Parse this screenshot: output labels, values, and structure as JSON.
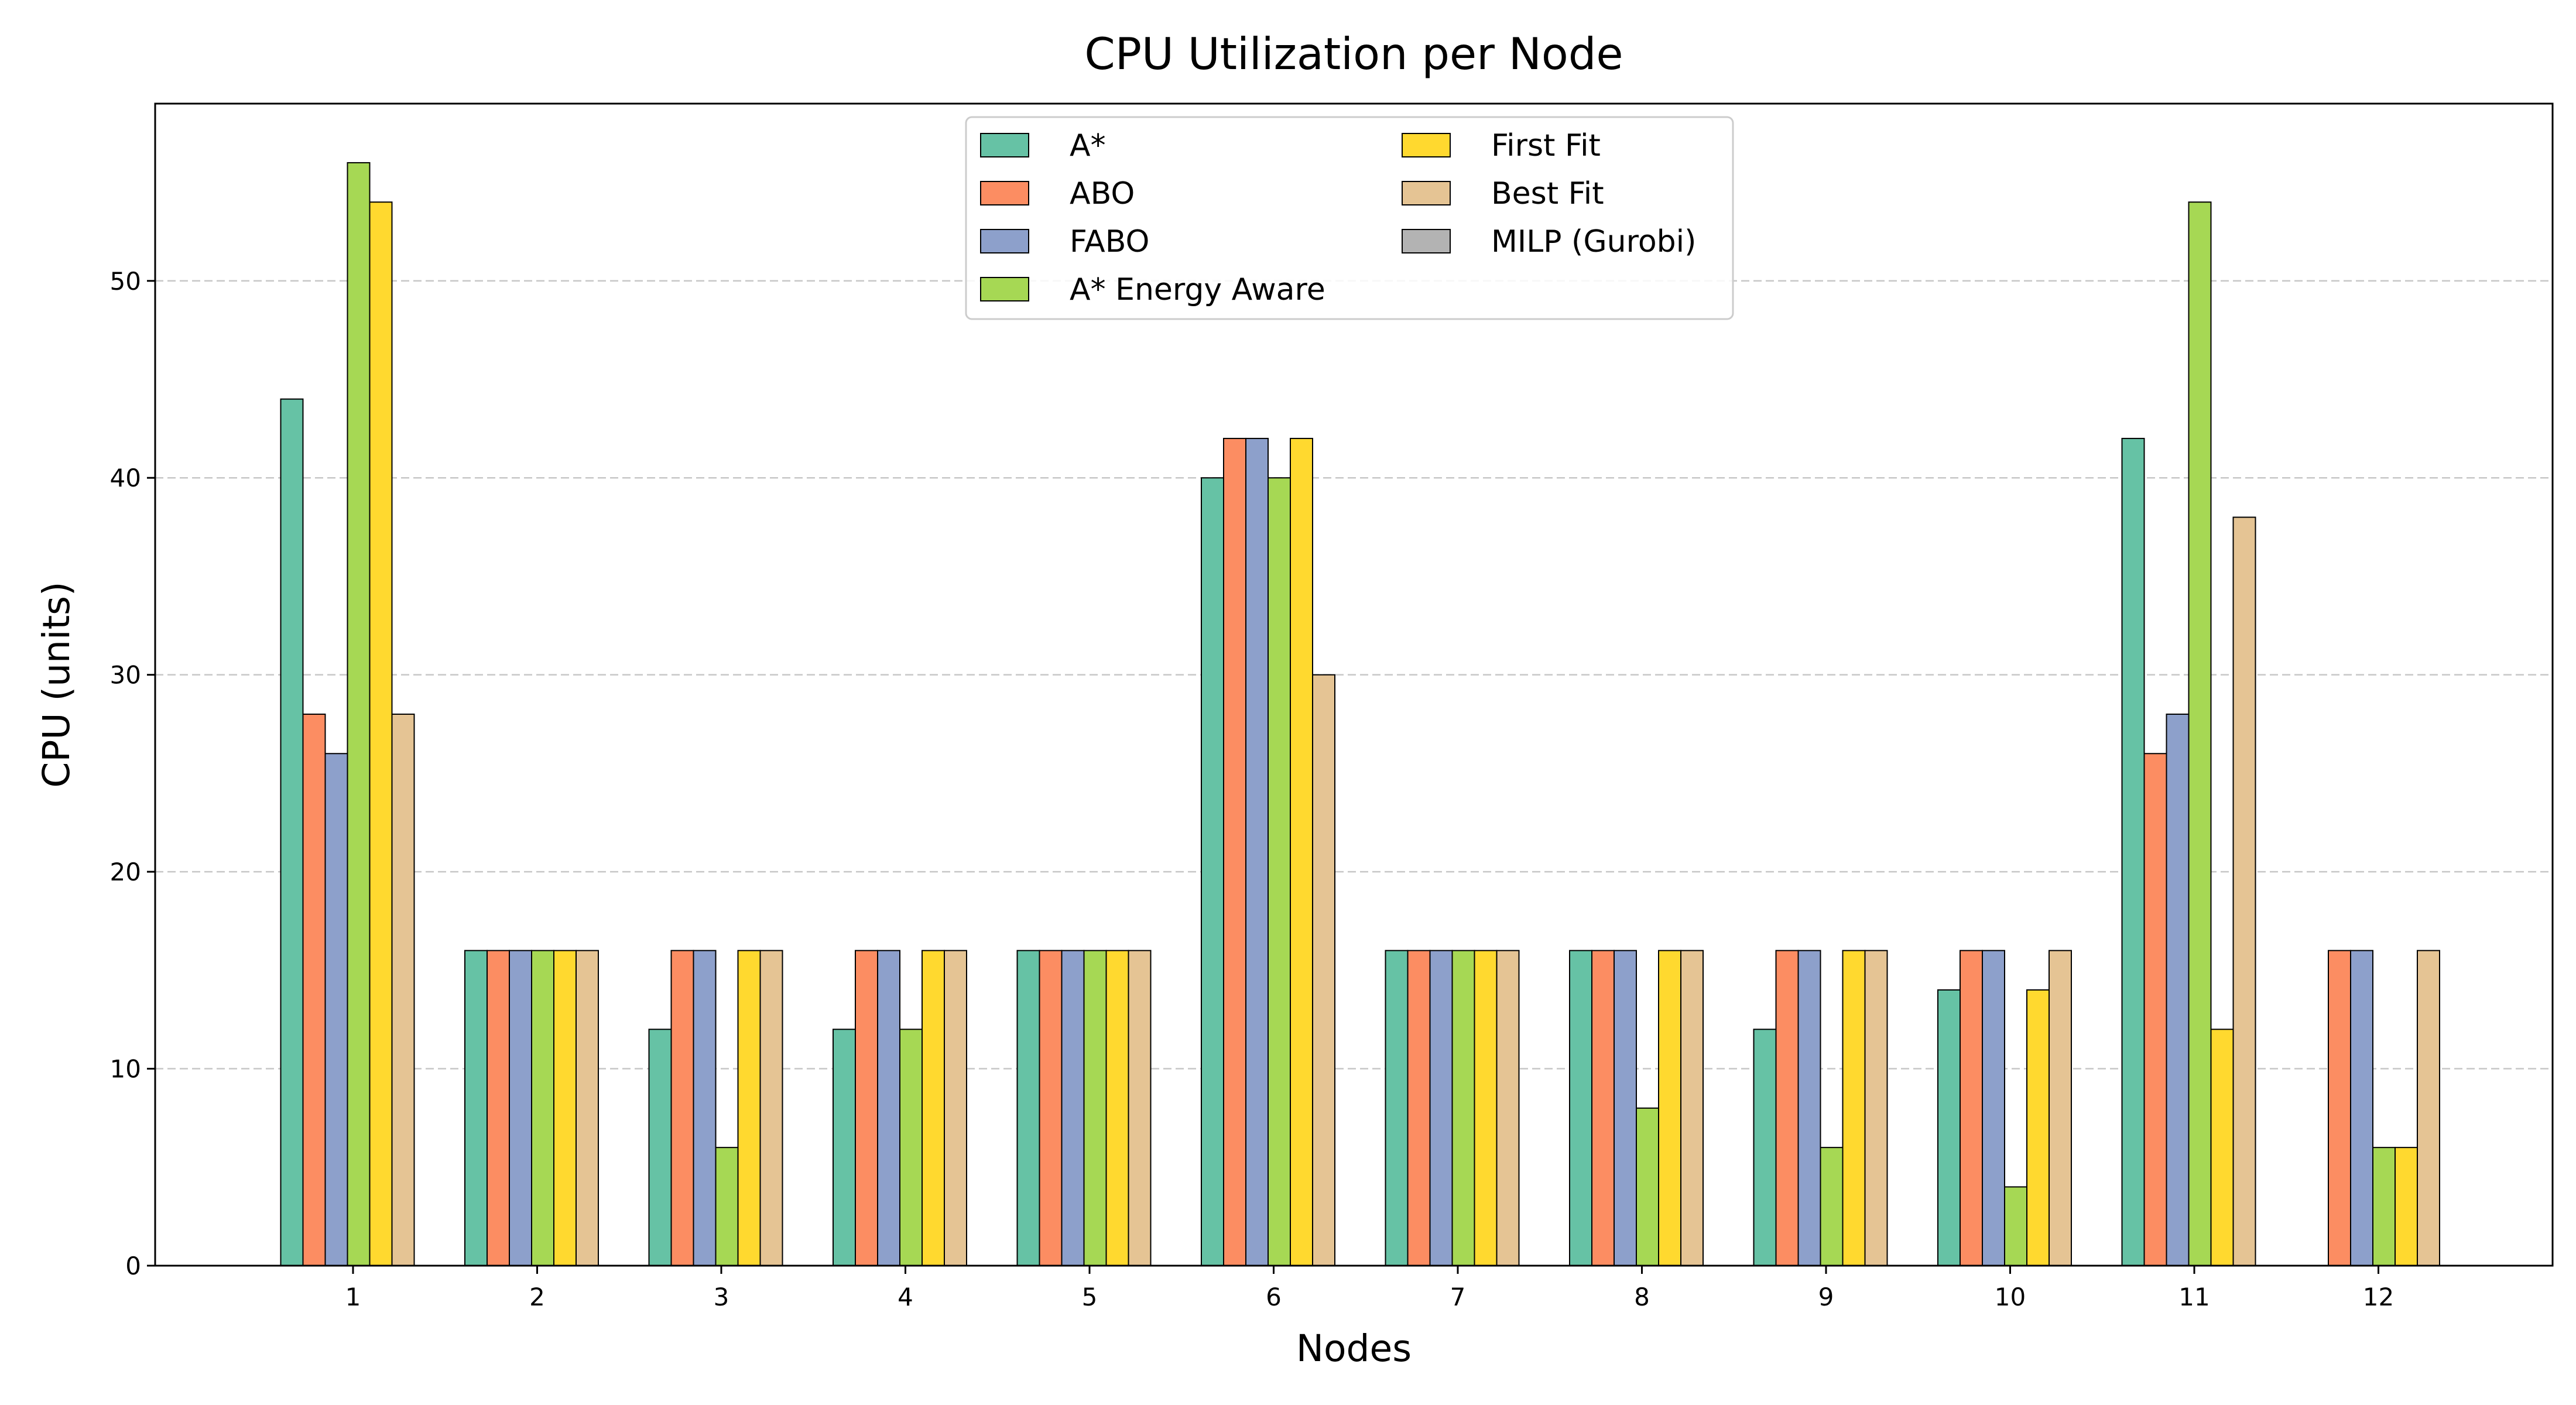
{
  "chart_data": {
    "type": "bar",
    "title": "CPU Utilization per Node",
    "xlabel": "Nodes",
    "ylabel": "CPU (units)",
    "categories": [
      "1",
      "2",
      "3",
      "4",
      "5",
      "6",
      "7",
      "8",
      "9",
      "10",
      "11",
      "12"
    ],
    "ylim": [
      0,
      59
    ],
    "yticks": [
      0,
      10,
      20,
      30,
      40,
      50
    ],
    "grid": "y-dashed",
    "legend_placement": "upper-center",
    "series": [
      {
        "name": "A*",
        "color": "#66c2a5",
        "values": [
          44,
          16,
          12,
          12,
          16,
          40,
          16,
          16,
          12,
          14,
          42,
          0
        ]
      },
      {
        "name": "ABO",
        "color": "#fc8d62",
        "values": [
          28,
          16,
          16,
          16,
          16,
          42,
          16,
          16,
          16,
          16,
          26,
          16
        ]
      },
      {
        "name": "FABO",
        "color": "#8da0cb",
        "values": [
          26,
          16,
          16,
          16,
          16,
          42,
          16,
          16,
          16,
          16,
          28,
          16
        ]
      },
      {
        "name": "A* Energy Aware",
        "color": "#a6d854",
        "values": [
          56,
          16,
          6,
          12,
          16,
          40,
          16,
          8,
          6,
          4,
          54,
          6
        ]
      },
      {
        "name": "First Fit",
        "color": "#ffd92f",
        "values": [
          54,
          16,
          16,
          16,
          16,
          42,
          16,
          16,
          16,
          14,
          12,
          6
        ]
      },
      {
        "name": "Best Fit",
        "color": "#e5c494",
        "values": [
          28,
          16,
          16,
          16,
          16,
          30,
          16,
          16,
          16,
          16,
          38,
          16
        ]
      },
      {
        "name": "MILP (Gurobi)",
        "color": "#b3b3b3",
        "values": [
          0,
          0,
          0,
          0,
          0,
          0,
          0,
          0,
          0,
          0,
          0,
          0
        ]
      }
    ]
  }
}
